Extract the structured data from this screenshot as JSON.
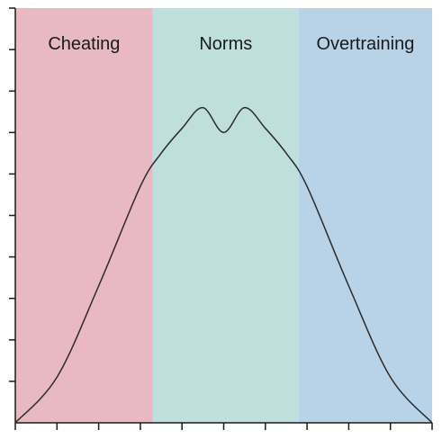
{
  "chart_data": {
    "type": "line",
    "title": "",
    "xlabel": "",
    "ylabel": "",
    "xlim": [
      0,
      10
    ],
    "ylim": [
      0,
      10
    ],
    "x_ticks": [
      0,
      1,
      2,
      3,
      4,
      5,
      6,
      7,
      8,
      9,
      10
    ],
    "y_ticks": [
      0,
      1,
      2,
      3,
      4,
      5,
      6,
      7,
      8,
      9,
      10
    ],
    "regions": [
      {
        "label": "Cheating",
        "x_start": 0,
        "x_end": 3.3,
        "color": "#e8b9c3"
      },
      {
        "label": "Norms",
        "x_start": 3.3,
        "x_end": 6.8,
        "color": "#bfdfdc"
      },
      {
        "label": "Overtraining",
        "x_start": 6.8,
        "x_end": 10,
        "color": "#b8d3e8"
      }
    ],
    "series": [
      {
        "color": "#2b2b2b",
        "x": [
          0,
          1,
          2,
          3,
          3.5,
          4,
          4.5,
          5,
          5.5,
          6,
          6.5,
          7,
          8,
          9,
          10
        ],
        "y": [
          0,
          1.1,
          3.3,
          5.7,
          6.5,
          7.1,
          7.6,
          7.0,
          7.6,
          7.1,
          6.5,
          5.7,
          3.3,
          1.1,
          0
        ]
      }
    ]
  }
}
